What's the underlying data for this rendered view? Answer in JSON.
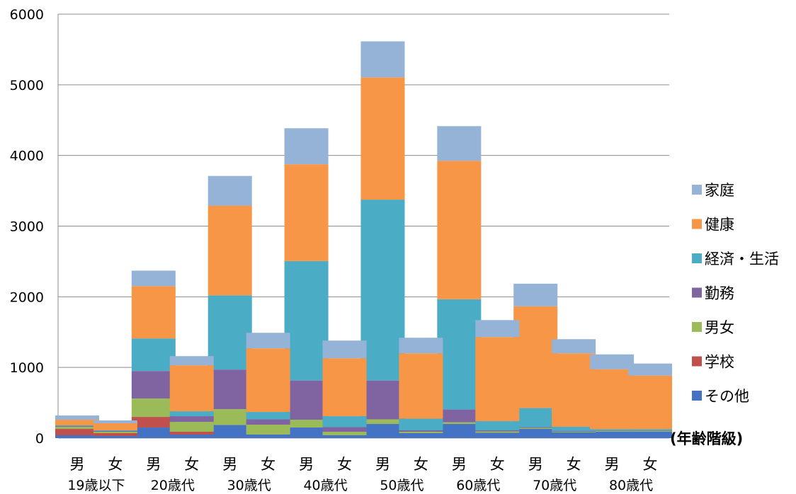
{
  "chart_data": {
    "type": "bar",
    "stacked": true,
    "categories": [
      "男",
      "女",
      "男",
      "女",
      "男",
      "女",
      "男",
      "女",
      "男",
      "女",
      "男",
      "女",
      "男",
      "女",
      "男",
      "女"
    ],
    "groups": [
      "19歳以下",
      "20歳代",
      "30歳代",
      "40歳代",
      "50歳代",
      "60歳代",
      "70歳代",
      "80歳代"
    ],
    "xlabel": "(年齢階級)",
    "ylim": [
      0,
      6000
    ],
    "yticks": [
      0,
      1000,
      2000,
      3000,
      4000,
      5000,
      6000
    ],
    "grid": true,
    "legend_position": "right",
    "series": [
      {
        "name": "その他",
        "color": "#4472C4",
        "values": [
          40,
          30,
          150,
          50,
          185,
          50,
          150,
          40,
          200,
          70,
          200,
          75,
          130,
          80,
          90,
          90
        ]
      },
      {
        "name": "学校",
        "color": "#C0504D",
        "values": [
          90,
          40,
          150,
          40,
          0,
          0,
          0,
          0,
          0,
          0,
          0,
          0,
          0,
          0,
          0,
          0
        ]
      },
      {
        "name": "男女",
        "color": "#9BBB59",
        "values": [
          30,
          20,
          260,
          140,
          225,
          140,
          110,
          50,
          65,
          20,
          25,
          20,
          15,
          10,
          10,
          10
        ]
      },
      {
        "name": "勤務",
        "color": "#8064A2",
        "values": [
          10,
          10,
          390,
          80,
          560,
          75,
          555,
          65,
          550,
          20,
          180,
          15,
          10,
          10,
          5,
          5
        ]
      },
      {
        "name": "経済・生活",
        "color": "#4BACC6",
        "values": [
          10,
          10,
          460,
          70,
          1050,
          105,
          1690,
          155,
          2560,
          165,
          1560,
          130,
          270,
          60,
          20,
          20
        ]
      },
      {
        "name": "健康",
        "color": "#F79646",
        "values": [
          80,
          100,
          740,
          650,
          1270,
          900,
          1370,
          820,
          1730,
          925,
          1960,
          1190,
          1440,
          1040,
          850,
          760
        ]
      },
      {
        "name": "家庭",
        "color": "#95B3D7",
        "values": [
          60,
          40,
          220,
          130,
          420,
          220,
          510,
          250,
          510,
          220,
          490,
          240,
          320,
          200,
          210,
          170
        ]
      }
    ]
  }
}
